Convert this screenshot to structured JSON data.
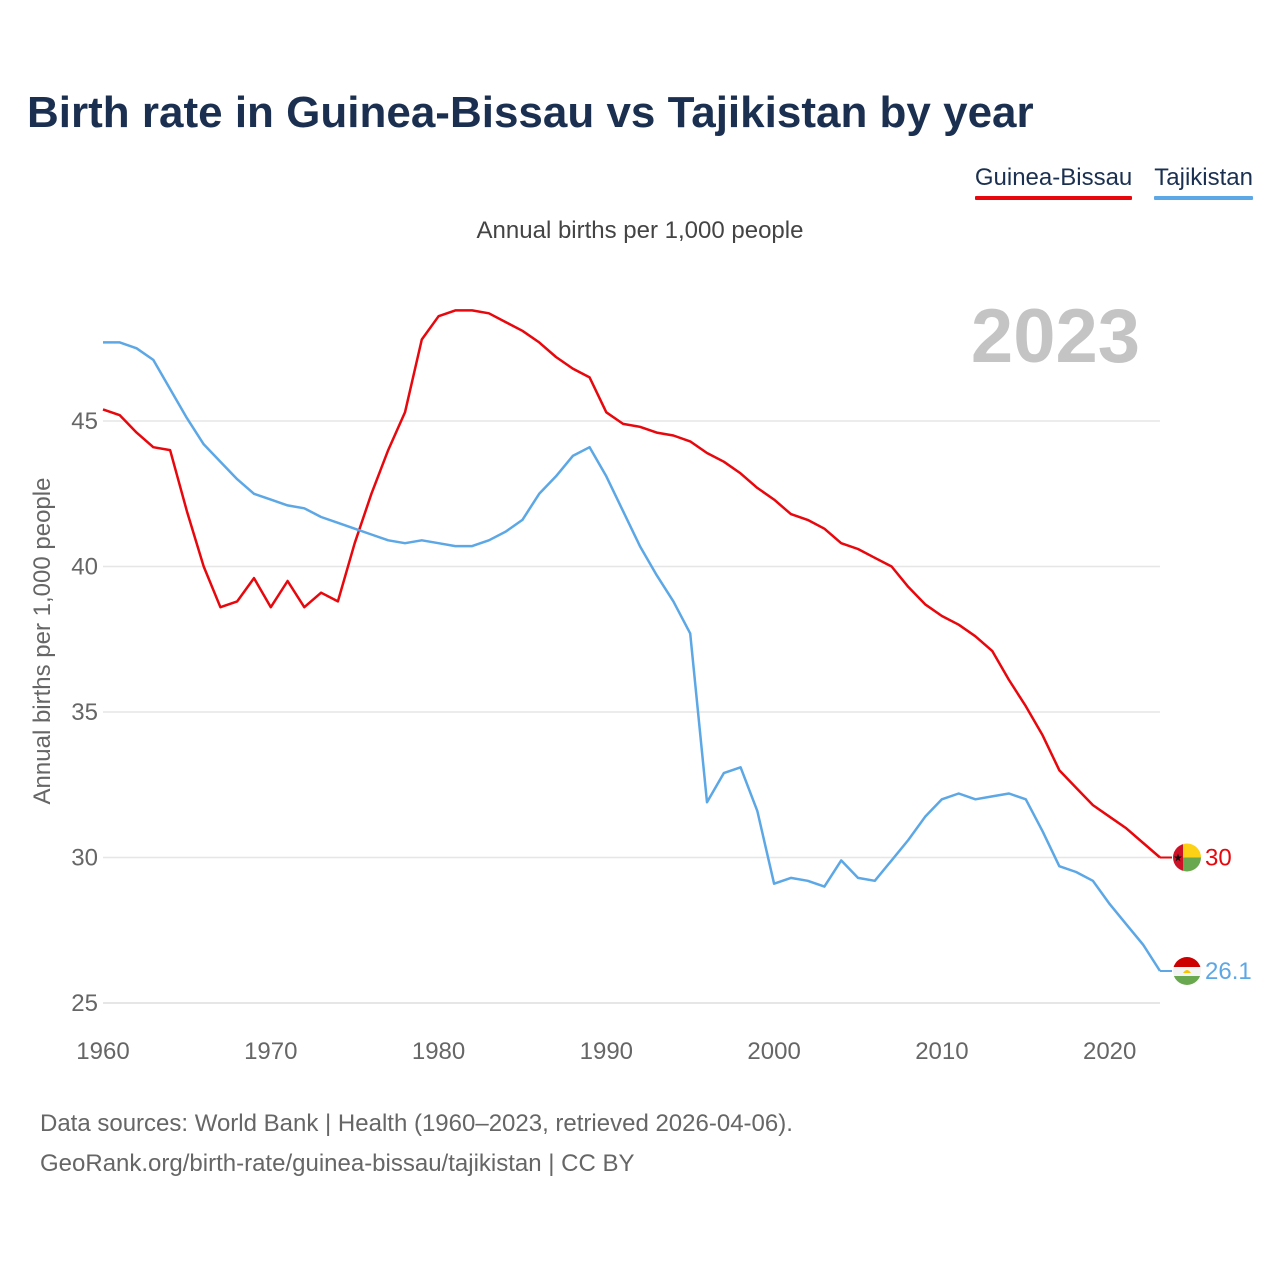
{
  "title": "Birth rate in Guinea-Bissau vs Tajikistan by year",
  "subtitle": "Annual births per 1,000 people",
  "legend": [
    {
      "name": "Guinea-Bissau",
      "color": "#e8070c"
    },
    {
      "name": "Tajikistan",
      "color": "#5ca7e6"
    }
  ],
  "footer": {
    "line1": "Data sources: World Bank | Health (1960–2023, retrieved 2026-04-06).",
    "line2": "GeoRank.org/birth-rate/guinea-bissau/tajikistan | CC BY"
  },
  "chart_data": {
    "type": "line",
    "title": "Birth rate in Guinea-Bissau vs Tajikistan by year",
    "ylabel": "Annual births per 1,000 people",
    "xlabel": "",
    "year_label": "2023",
    "xlim": [
      1960,
      2023
    ],
    "ylim": [
      25,
      49.5
    ],
    "x_ticks": [
      1960,
      1970,
      1980,
      1990,
      2000,
      2010,
      2020
    ],
    "y_ticks": [
      25,
      30,
      35,
      40,
      45
    ],
    "x": [
      1960,
      1961,
      1962,
      1963,
      1964,
      1965,
      1966,
      1967,
      1968,
      1969,
      1970,
      1971,
      1972,
      1973,
      1974,
      1975,
      1976,
      1977,
      1978,
      1979,
      1980,
      1981,
      1982,
      1983,
      1984,
      1985,
      1986,
      1987,
      1988,
      1989,
      1990,
      1991,
      1992,
      1993,
      1994,
      1995,
      1996,
      1997,
      1998,
      1999,
      2000,
      2001,
      2002,
      2003,
      2004,
      2005,
      2006,
      2007,
      2008,
      2009,
      2010,
      2011,
      2012,
      2013,
      2014,
      2015,
      2016,
      2017,
      2018,
      2019,
      2020,
      2021,
      2022,
      2023
    ],
    "series": [
      {
        "name": "Guinea-Bissau",
        "color": "#e8070c",
        "end_label": "30",
        "values": [
          45.4,
          45.2,
          44.6,
          44.1,
          44.0,
          41.9,
          40.0,
          38.6,
          38.8,
          39.6,
          38.6,
          39.5,
          38.6,
          39.1,
          38.8,
          40.8,
          42.5,
          44.0,
          45.3,
          47.8,
          48.6,
          48.8,
          48.8,
          48.7,
          48.4,
          48.1,
          47.7,
          47.2,
          46.8,
          46.5,
          45.3,
          44.9,
          44.8,
          44.6,
          44.5,
          44.3,
          43.9,
          43.6,
          43.2,
          42.7,
          42.3,
          41.8,
          41.6,
          41.3,
          40.8,
          40.6,
          40.3,
          40.0,
          39.3,
          38.7,
          38.3,
          38.0,
          37.6,
          37.1,
          36.1,
          35.2,
          34.2,
          33.0,
          32.4,
          31.8,
          31.4,
          31.0,
          30.5,
          30.0
        ]
      },
      {
        "name": "Tajikistan",
        "color": "#5ca7e6",
        "end_label": "26.1",
        "values": [
          47.7,
          47.7,
          47.5,
          47.1,
          46.1,
          45.1,
          44.2,
          43.6,
          43.0,
          42.5,
          42.3,
          42.1,
          42.0,
          41.7,
          41.5,
          41.3,
          41.1,
          40.9,
          40.8,
          40.9,
          40.8,
          40.7,
          40.7,
          40.9,
          41.2,
          41.6,
          42.5,
          43.1,
          43.8,
          44.1,
          43.1,
          41.9,
          40.7,
          39.7,
          38.8,
          37.7,
          31.9,
          32.9,
          33.1,
          31.6,
          29.1,
          29.3,
          29.2,
          29.0,
          29.9,
          29.3,
          29.2,
          29.9,
          30.6,
          31.4,
          32.0,
          32.2,
          32.0,
          32.1,
          32.2,
          32.0,
          30.9,
          29.7,
          29.5,
          29.2,
          28.4,
          27.7,
          27.0,
          26.1
        ]
      }
    ]
  }
}
